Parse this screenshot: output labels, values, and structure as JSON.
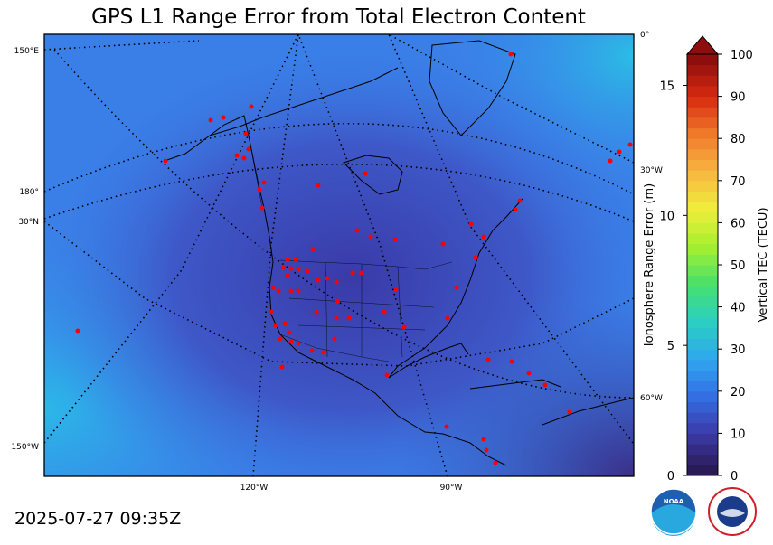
{
  "title": "GPS L1 Range Error from Total Electron Content",
  "timestamp": "2025-07-27 09:35Z",
  "map": {
    "graticule_labels_left": [
      "150°E",
      "180°",
      "30°N",
      "150°W"
    ],
    "graticule_labels_right": [
      "0°",
      "30°W",
      "60°W"
    ],
    "graticule_labels_bottom": [
      "120°W",
      "90°W"
    ],
    "colors": {
      "background_field": "#3a7fe8",
      "core_field": "#3a4fb8",
      "stations": "#ff0000"
    }
  },
  "colorbar": {
    "left_axis_label": "Ionosphere Range Error (m)",
    "left_ticks": [
      "15",
      "10",
      "5",
      "0"
    ],
    "right_axis_label": "Vertical TEC (TECU)",
    "right_ticks": [
      "100",
      "90",
      "80",
      "70",
      "60",
      "50",
      "40",
      "30",
      "20",
      "10",
      "0"
    ],
    "tec_range": [
      0,
      100
    ],
    "range_error_range": [
      0,
      16.2
    ],
    "extend": "max",
    "colormap": [
      "#2a1a55",
      "#3b3aa8",
      "#3370e5",
      "#2fa8ef",
      "#2ad0c0",
      "#48e06a",
      "#a6ef30",
      "#f0ee3a",
      "#f7b640",
      "#f07a2a",
      "#d82a10",
      "#8e0e0e"
    ]
  },
  "logos": {
    "noaa_text": "NOAA",
    "nws_text": "NATIONAL WEATHER SERVICE"
  }
}
